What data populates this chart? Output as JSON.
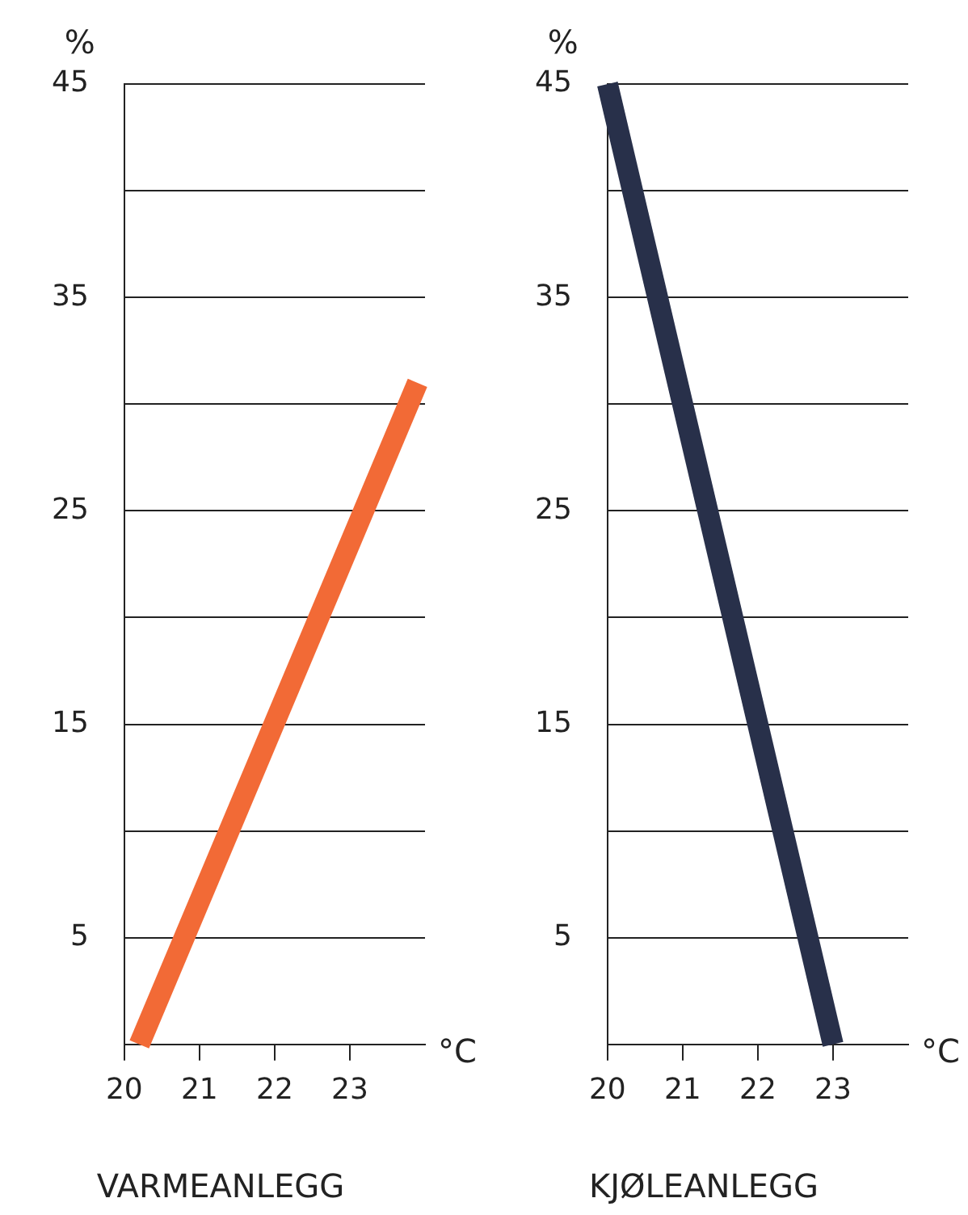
{
  "chart_data": [
    {
      "type": "line",
      "title": "VARMEANLEGG",
      "ylabel": "%",
      "xlabel": "°C",
      "x": [
        20.2,
        23.9
      ],
      "series": [
        {
          "color": "#f26a36",
          "values": [
            0,
            31
          ]
        }
      ],
      "xlim": [
        20,
        24
      ],
      "xticks": [
        20,
        21,
        22,
        23
      ],
      "ylim": [
        0,
        45
      ],
      "yticks": [
        5,
        {
          "value": 10,
          "label": null
        },
        15,
        {
          "value": 20,
          "label": null
        },
        25,
        {
          "value": 30,
          "label": null
        },
        35,
        {
          "value": 40,
          "label": null
        },
        45
      ],
      "grid": "y",
      "legend": false,
      "marker": "none",
      "line_style": "solid"
    },
    {
      "type": "line",
      "title": "KJØLEANLEGG",
      "ylabel": "%",
      "xlabel": "°C",
      "x": [
        20,
        23
      ],
      "series": [
        {
          "color": "#28304a",
          "values": [
            45,
            0
          ]
        }
      ],
      "xlim": [
        20,
        24
      ],
      "xticks": [
        20,
        21,
        22,
        23
      ],
      "ylim": [
        0,
        45
      ],
      "yticks": [
        5,
        {
          "value": 10,
          "label": null
        },
        15,
        {
          "value": 20,
          "label": null
        },
        25,
        {
          "value": 30,
          "label": null
        },
        35,
        {
          "value": 40,
          "label": null
        },
        45
      ],
      "grid": "y",
      "legend": false,
      "marker": "none",
      "line_style": "solid"
    }
  ]
}
